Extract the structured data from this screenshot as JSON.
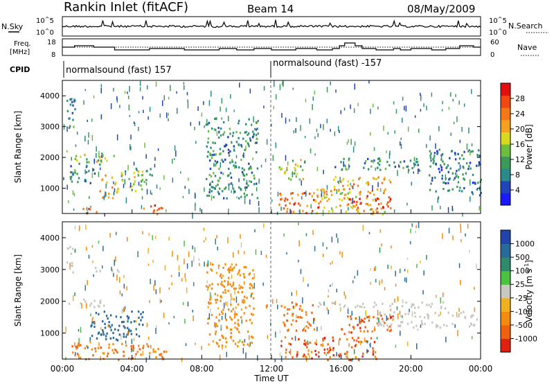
{
  "header": {
    "station": "Rankin Inlet (fitACF)",
    "beam": "Beam 14",
    "date": "08/May/2009"
  },
  "labels": {
    "nsky": "N.Sky",
    "nsearch": "N.Search",
    "freq_line1": "Freq.",
    "freq_line2": "[MHz]",
    "nave": "Nave",
    "cpid": "CPID",
    "exp": "10",
    "exp_top": "5",
    "exp_bot": "0"
  },
  "cpid_blocks": [
    {
      "label": "normalsound (fast) 157",
      "start": 0,
      "end": 12
    },
    {
      "label": "normalsound (fast) -157",
      "start": 12,
      "end": 24
    }
  ],
  "chart_data": [
    {
      "type": "heatmap",
      "name": "power",
      "xlabel": "",
      "ylabel": "Slant Range [km]",
      "xlim": [
        0,
        24
      ],
      "ylim": [
        180,
        4500
      ],
      "xticks": [
        "00:00",
        "04:00",
        "08:00",
        "12:00",
        "16:00",
        "20:00",
        "00:00"
      ],
      "yticks": [
        1000,
        2000,
        3000,
        4000
      ],
      "colorbar": {
        "label": "Power [dB]",
        "ticks": [
          4,
          8,
          12,
          16,
          20,
          24,
          28
        ],
        "colors": [
          "#1a1aff",
          "#2244bb",
          "#2a8a8a",
          "#3b9a5a",
          "#6cbf3c",
          "#d8d820",
          "#f5a020",
          "#f57818",
          "#f04810",
          "#e01010"
        ]
      },
      "regions": [
        {
          "t0": 0.1,
          "t1": 0.7,
          "r0": 2900,
          "r1": 4000,
          "v": 9
        },
        {
          "t0": 0.5,
          "t1": 2.3,
          "r0": 1800,
          "r1": 2150,
          "v": 17
        },
        {
          "t0": 0.4,
          "t1": 2.0,
          "r0": 1200,
          "r1": 1800,
          "v": 9
        },
        {
          "t0": 1.1,
          "t1": 2.0,
          "r0": 200,
          "r1": 420,
          "v": 28
        },
        {
          "t0": 2.1,
          "t1": 3.2,
          "r0": 700,
          "r1": 1500,
          "v": 20
        },
        {
          "t0": 2.0,
          "t1": 3.0,
          "r0": 1900,
          "r1": 2200,
          "v": 15
        },
        {
          "t0": 3.3,
          "t1": 4.6,
          "r0": 900,
          "r1": 1600,
          "v": 15
        },
        {
          "t0": 4.6,
          "t1": 5.8,
          "r0": 180,
          "r1": 500,
          "v": 26
        },
        {
          "t0": 4.2,
          "t1": 5.2,
          "r0": 1200,
          "r1": 1700,
          "v": 11
        },
        {
          "t0": 8.2,
          "t1": 11.2,
          "r0": 700,
          "r1": 3300,
          "v": 9
        },
        {
          "t0": 12.4,
          "t1": 14.8,
          "r0": 200,
          "r1": 900,
          "v": 25
        },
        {
          "t0": 12.4,
          "t1": 14.0,
          "r0": 1300,
          "r1": 2000,
          "v": 15
        },
        {
          "t0": 14.5,
          "t1": 18.5,
          "r0": 180,
          "r1": 1100,
          "v": 20
        },
        {
          "t0": 16.3,
          "t1": 18.8,
          "r0": 350,
          "r1": 800,
          "v": 27
        },
        {
          "t0": 15.5,
          "t1": 19.2,
          "r0": 1100,
          "r1": 1400,
          "v": 21
        },
        {
          "t0": 15.6,
          "t1": 20.5,
          "r0": 1600,
          "r1": 2000,
          "v": 9
        },
        {
          "t0": 21.0,
          "t1": 24.0,
          "r0": 800,
          "r1": 2300,
          "v": 7
        }
      ]
    },
    {
      "type": "heatmap",
      "name": "velocity",
      "xlabel": "Time UT",
      "ylabel": "Slant Range [km]",
      "xlim": [
        0,
        24
      ],
      "ylim": [
        180,
        4500
      ],
      "xticks": [
        "00:00",
        "04:00",
        "08:00",
        "12:00",
        "16:00",
        "20:00",
        "00:00"
      ],
      "yticks": [
        1000,
        2000,
        3000,
        4000
      ],
      "colorbar": {
        "label": "Velocity [m s",
        "label_sup": "-1",
        "label_end": "]",
        "ticks": [
          1000,
          500,
          100,
          25,
          -25,
          -100,
          -500,
          -1000
        ],
        "colors": [
          "#2244aa",
          "#2a6a9a",
          "#2e8a6a",
          "#4cc040",
          "#c8c8c0",
          "#f0b020",
          "#f58a10",
          "#f06010",
          "#e02010"
        ]
      },
      "regions": [
        {
          "t0": 0.2,
          "t1": 0.7,
          "r0": 2800,
          "r1": 3800,
          "v": 0
        },
        {
          "t0": 0.2,
          "t1": 2.4,
          "r0": 1850,
          "r1": 2100,
          "v": 0
        },
        {
          "t0": 1.8,
          "t1": 3.2,
          "r0": 2900,
          "r1": 3100,
          "v": 0
        },
        {
          "t0": 1.6,
          "t1": 3.9,
          "r0": 800,
          "r1": 1750,
          "v": 300
        },
        {
          "t0": 3.6,
          "t1": 4.6,
          "r0": 900,
          "r1": 1800,
          "v": 250
        },
        {
          "t0": 0.5,
          "t1": 6.2,
          "r0": 180,
          "r1": 700,
          "v": -300
        },
        {
          "t0": 8.2,
          "t1": 11.0,
          "r0": 600,
          "r1": 3200,
          "v": -150
        },
        {
          "t0": 12.5,
          "t1": 18.0,
          "r0": 180,
          "r1": 900,
          "v": -400
        },
        {
          "t0": 12.5,
          "t1": 14.5,
          "r0": 1100,
          "r1": 2000,
          "v": -300
        },
        {
          "t0": 15.8,
          "t1": 19.0,
          "r0": 1000,
          "r1": 1600,
          "v": -400
        },
        {
          "t0": 14.5,
          "t1": 22.0,
          "r0": 1800,
          "r1": 2000,
          "v": 0
        },
        {
          "t0": 18.0,
          "t1": 23.8,
          "r0": 1200,
          "r1": 1700,
          "v": 0
        }
      ]
    }
  ]
}
